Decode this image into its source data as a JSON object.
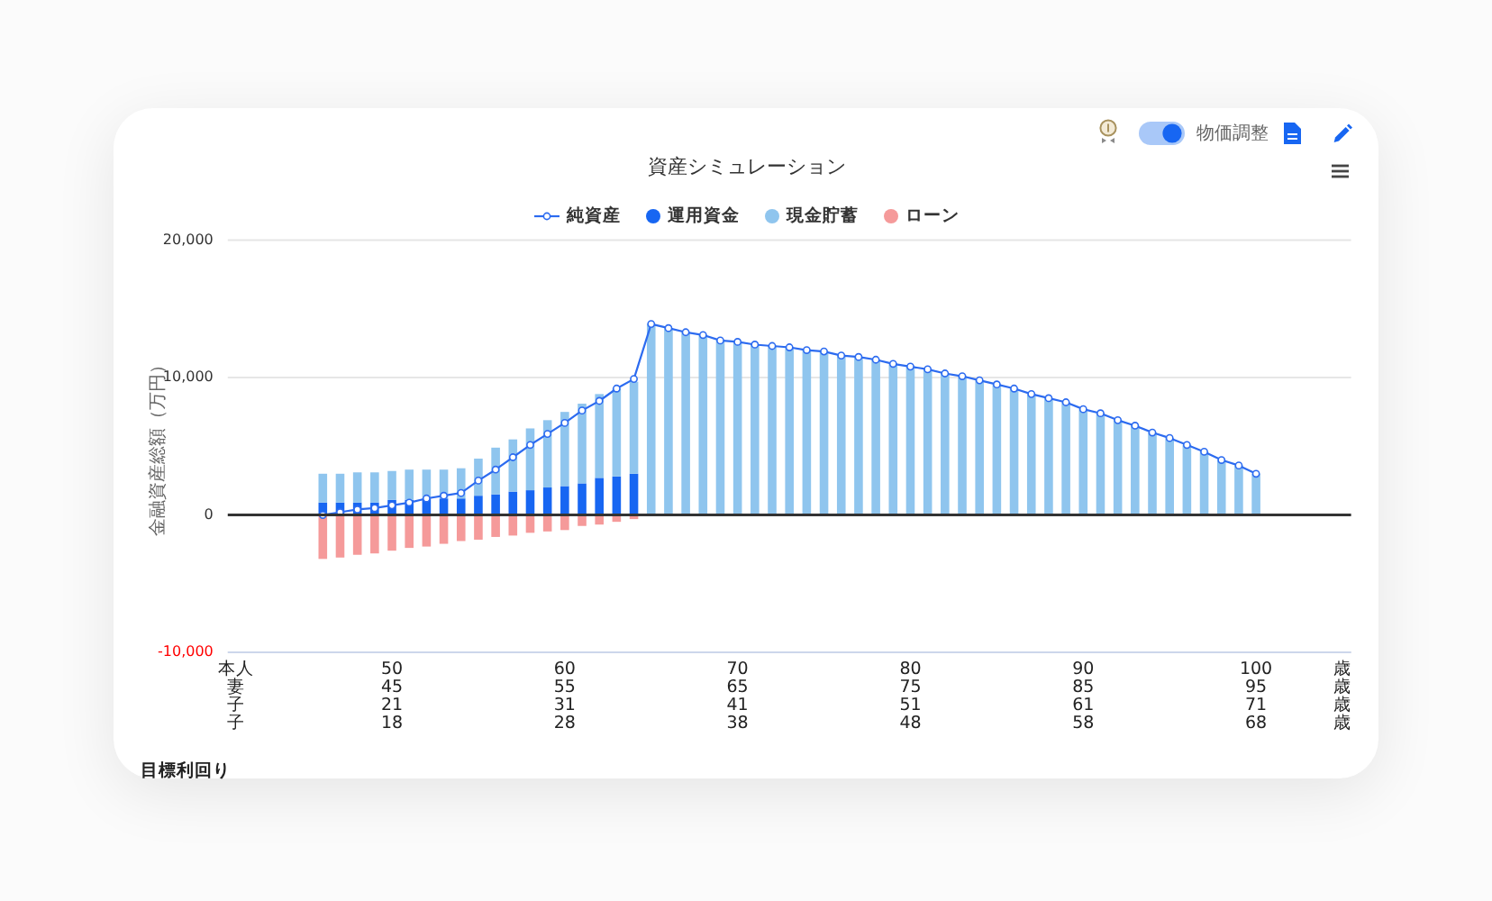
{
  "chart_data": {
    "type": "bar",
    "title": "資産シミュレーション",
    "ylabel": "金融資産総額（万円）",
    "categories": [
      null,
      null,
      null,
      null,
      null,
      null,
      null,
      null,
      null,
      "50\n45\n21\n18",
      null,
      null,
      null,
      null,
      null,
      null,
      null,
      null,
      null,
      "60\n55\n31\n28",
      null,
      null,
      null,
      null,
      null,
      null,
      null,
      null,
      null,
      "70\n65\n41\n38",
      null,
      null,
      null,
      null,
      null,
      null,
      null,
      null,
      null,
      "80\n75\n51\n48",
      null,
      null,
      null,
      null,
      null,
      null,
      null,
      null,
      null,
      "90\n85\n61\n58",
      null,
      null,
      null,
      null,
      null,
      null,
      null,
      null,
      null,
      "100\n95\n71\n68",
      null,
      null,
      null,
      null,
      null
    ],
    "series": [
      {
        "name": "純資産",
        "type": "line",
        "color": "#2c6bf0",
        "values": [
          null,
          null,
          null,
          null,
          null,
          0,
          200,
          400,
          500,
          700,
          900,
          1200,
          1400,
          1600,
          2500,
          3300,
          4200,
          5100,
          5900,
          6700,
          7600,
          8300,
          9200,
          9900,
          13900,
          13600,
          13300,
          13100,
          12700,
          12600,
          12400,
          12300,
          12200,
          12000,
          11900,
          11600,
          11500,
          11300,
          11000,
          10800,
          10600,
          10300,
          10100,
          9800,
          9500,
          9200,
          8800,
          8500,
          8200,
          7700,
          7400,
          6900,
          6500,
          6000,
          5600,
          5100,
          4600,
          4000,
          3600,
          3000,
          null,
          null,
          null,
          null,
          null
        ]
      },
      {
        "name": "運用資金",
        "color": "#1766f2",
        "values": [
          null,
          null,
          null,
          null,
          null,
          900,
          900,
          900,
          900,
          1100,
          1100,
          1200,
          1200,
          1200,
          1400,
          1500,
          1700,
          1800,
          2000,
          2100,
          2300,
          2700,
          2800,
          3000,
          null,
          null,
          null,
          null,
          null,
          null,
          null,
          null,
          null,
          null,
          null,
          null,
          null,
          null,
          null,
          null,
          null,
          null,
          null,
          null,
          null,
          null,
          null,
          null,
          null,
          null,
          null,
          null,
          null,
          null,
          null,
          null,
          null,
          null,
          null,
          null,
          null,
          null,
          null,
          null,
          null
        ]
      },
      {
        "name": "現金貯蓄",
        "color": "#8fc5ee",
        "values": [
          null,
          null,
          null,
          null,
          null,
          2100,
          2100,
          2200,
          2200,
          2100,
          2200,
          2100,
          2100,
          2200,
          2700,
          3400,
          3800,
          4500,
          4900,
          5400,
          5800,
          6100,
          6400,
          6700,
          13900,
          13600,
          13300,
          13100,
          12700,
          12600,
          12400,
          12300,
          12200,
          12000,
          11900,
          11600,
          11500,
          11300,
          11000,
          10800,
          10600,
          10300,
          10100,
          9800,
          9500,
          9200,
          8800,
          8500,
          8200,
          7700,
          7400,
          6900,
          6500,
          6000,
          5600,
          5100,
          4600,
          4000,
          3600,
          3000,
          null,
          null,
          null,
          null,
          null
        ]
      },
      {
        "name": "ローン",
        "color": "#f59a9a",
        "values": [
          null,
          null,
          null,
          null,
          null,
          -3200,
          -3100,
          -2900,
          -2800,
          -2600,
          -2400,
          -2300,
          -2100,
          -1900,
          -1800,
          -1600,
          -1500,
          -1300,
          -1200,
          -1100,
          -800,
          -700,
          -500,
          -300,
          null,
          null,
          null,
          null,
          null,
          null,
          null,
          null,
          null,
          null,
          null,
          null,
          null,
          null,
          null,
          null,
          null,
          null,
          null,
          null,
          null,
          null,
          null,
          null,
          null,
          null,
          null,
          null,
          null,
          null,
          null,
          null,
          null,
          null,
          null,
          null,
          null,
          null,
          null,
          null,
          null
        ]
      }
    ],
    "stacked": true,
    "ylim": [
      -10000,
      20000
    ],
    "yticks": [
      {
        "value": -10000,
        "label": "-10,000"
      },
      0,
      {
        "value": 10000,
        "label": "10,000"
      },
      {
        "value": 20000,
        "label": "20,000"
      }
    ],
    "ref_lines": [
      {
        "axis": "y",
        "value": 0,
        "color": "#333333"
      }
    ],
    "grid": "y",
    "legend": "top",
    "marker": "circle",
    "annotations": [
      "物価調整",
      "目標利回り",
      "本人",
      "妻",
      "子",
      "子",
      "歳",
      "歳",
      "歳",
      "歳"
    ]
  }
}
